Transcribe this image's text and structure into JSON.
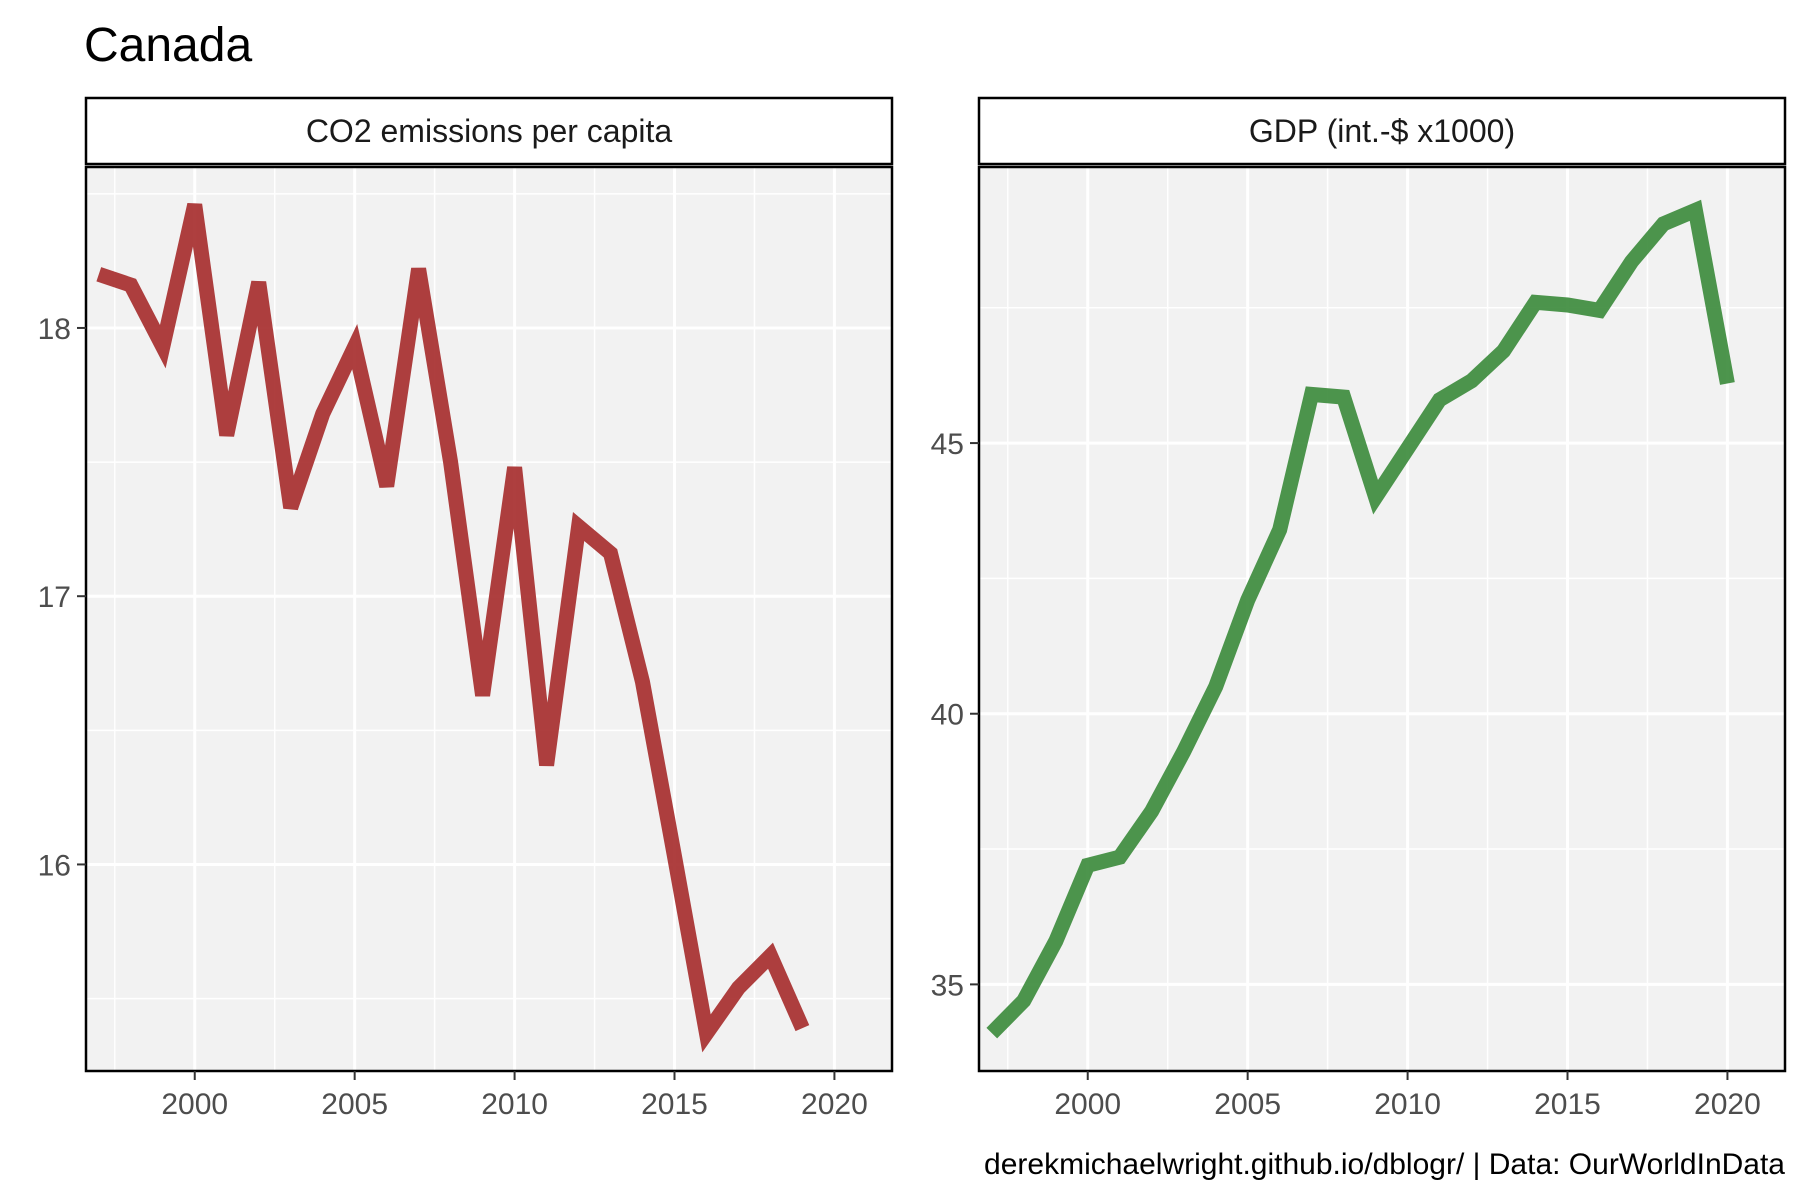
{
  "title": "Canada",
  "caption": "derekmichaelwright.github.io/dblogr/ | Data: OurWorldInData",
  "chart_data": [
    {
      "type": "line",
      "panel_label": "CO2 emissions per capita",
      "color": "#A52A2A",
      "x": [
        1997,
        1998,
        1999,
        2000,
        2001,
        2002,
        2003,
        2004,
        2005,
        2006,
        2007,
        2008,
        2009,
        2010,
        2011,
        2012,
        2013,
        2014,
        2015,
        2016,
        2017,
        2018,
        2019
      ],
      "y": [
        18.2,
        18.16,
        17.93,
        18.46,
        17.6,
        18.17,
        17.33,
        17.68,
        17.93,
        17.41,
        18.22,
        17.5,
        16.63,
        17.48,
        16.37,
        17.26,
        17.16,
        16.68,
        16.03,
        15.37,
        15.54,
        15.66,
        15.39
      ],
      "xlim": [
        1996.6,
        2021.8
      ],
      "ylim": [
        15.23,
        18.6
      ],
      "xticks": [
        2000,
        2005,
        2010,
        2015,
        2020
      ],
      "yticks": [
        16,
        17,
        18
      ],
      "xtick_labels": [
        "2000",
        "2005",
        "2010",
        "2015",
        "2020"
      ],
      "ytick_labels": [
        "16",
        "17",
        "18"
      ],
      "grid": true
    },
    {
      "type": "line",
      "panel_label": "GDP (int.-$ x1000)",
      "color": "#3A8A3A",
      "x": [
        1997,
        1998,
        1999,
        2000,
        2001,
        2002,
        2003,
        2004,
        2005,
        2006,
        2007,
        2008,
        2009,
        2010,
        2011,
        2012,
        2013,
        2014,
        2015,
        2016,
        2017,
        2018,
        2019,
        2020
      ],
      "y": [
        34.1,
        34.7,
        35.8,
        37.2,
        37.35,
        38.2,
        39.3,
        40.5,
        42.1,
        43.4,
        45.9,
        45.85,
        44.0,
        44.9,
        45.8,
        46.15,
        46.7,
        47.6,
        47.55,
        47.45,
        48.35,
        49.05,
        49.3,
        46.1
      ],
      "xlim": [
        1996.6,
        2021.8
      ],
      "ylim": [
        33.4,
        50.1
      ],
      "xticks": [
        2000,
        2005,
        2010,
        2015,
        2020
      ],
      "yticks": [
        35,
        40,
        45
      ],
      "xtick_labels": [
        "2000",
        "2005",
        "2010",
        "2015",
        "2020"
      ],
      "ytick_labels": [
        "35",
        "40",
        "45"
      ],
      "grid": true
    }
  ]
}
